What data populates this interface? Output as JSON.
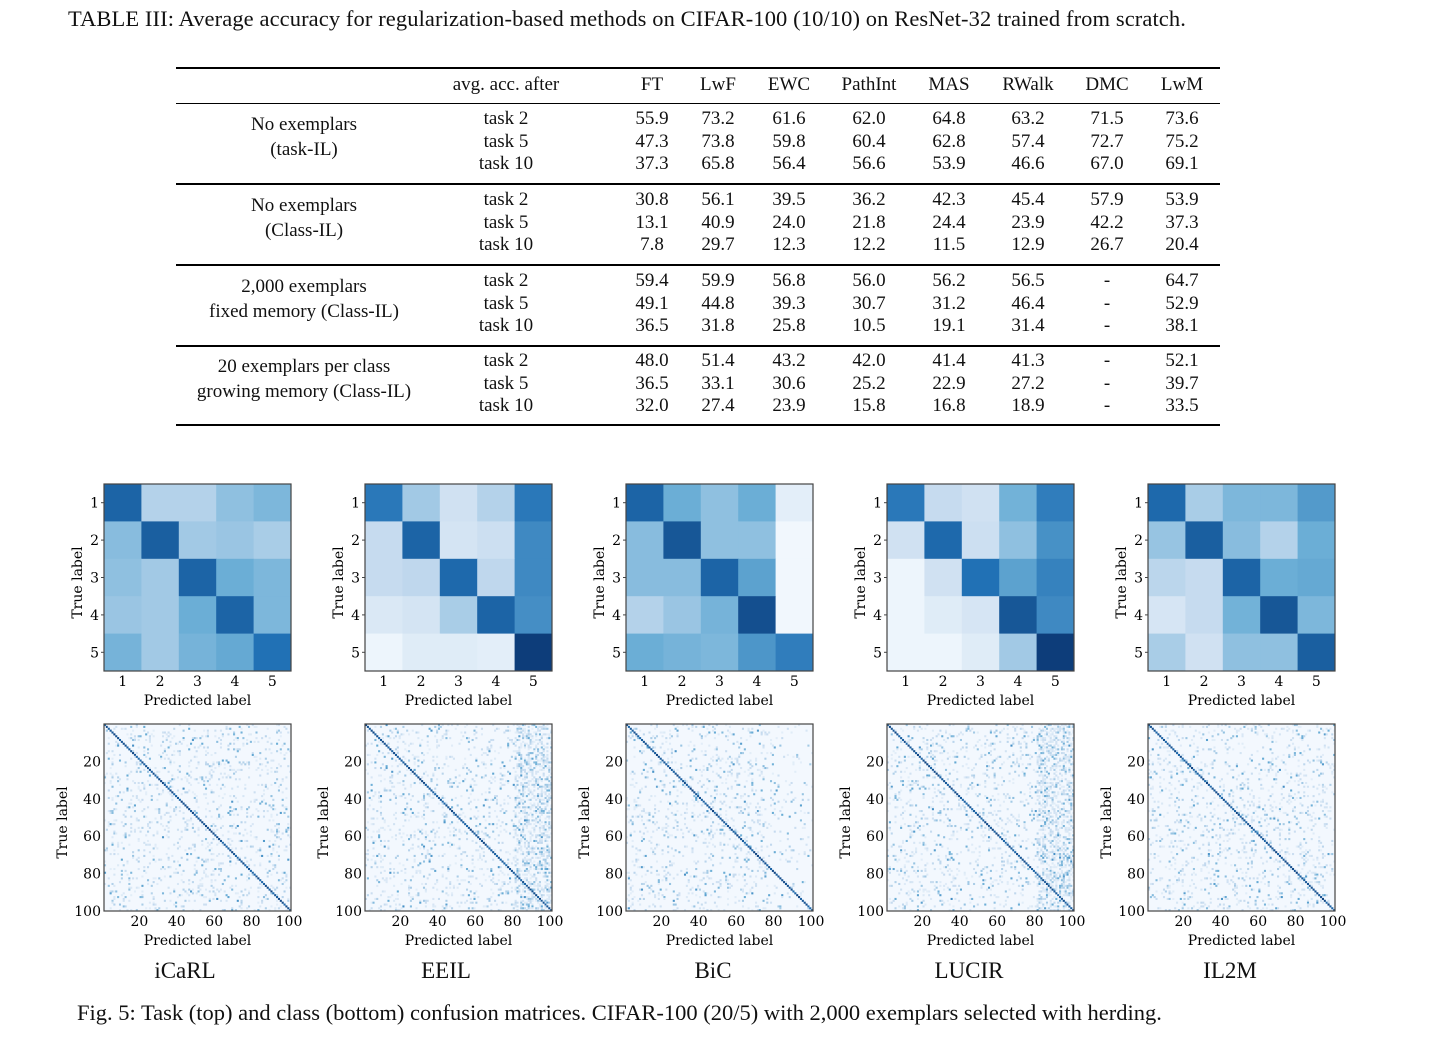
{
  "table": {
    "caption": "TABLE III: Average accuracy for regularization-based methods on CIFAR-100 (10/10) on ResNet-32 trained from scratch.",
    "header": [
      "avg. acc. after",
      "FT",
      "LwF",
      "EWC",
      "PathInt",
      "MAS",
      "RWalk",
      "DMC",
      "LwM"
    ],
    "groups": [
      {
        "label_lines": [
          "No exemplars",
          "(task-IL)"
        ],
        "rows": [
          {
            "task": "task 2",
            "values": [
              "55.9",
              "73.2",
              "61.6",
              "62.0",
              "64.8",
              "63.2",
              "71.5",
              "73.6"
            ]
          },
          {
            "task": "task 5",
            "values": [
              "47.3",
              "73.8",
              "59.8",
              "60.4",
              "62.8",
              "57.4",
              "72.7",
              "75.2"
            ]
          },
          {
            "task": "task 10",
            "values": [
              "37.3",
              "65.8",
              "56.4",
              "56.6",
              "53.9",
              "46.6",
              "67.0",
              "69.1"
            ]
          }
        ]
      },
      {
        "label_lines": [
          "No exemplars",
          "(Class-IL)"
        ],
        "rows": [
          {
            "task": "task 2",
            "values": [
              "30.8",
              "56.1",
              "39.5",
              "36.2",
              "42.3",
              "45.4",
              "57.9",
              "53.9"
            ]
          },
          {
            "task": "task 5",
            "values": [
              "13.1",
              "40.9",
              "24.0",
              "21.8",
              "24.4",
              "23.9",
              "42.2",
              "37.3"
            ]
          },
          {
            "task": "task 10",
            "values": [
              "7.8",
              "29.7",
              "12.3",
              "12.2",
              "11.5",
              "12.9",
              "26.7",
              "20.4"
            ]
          }
        ]
      },
      {
        "label_lines": [
          "2,000 exemplars",
          "fixed memory (Class-IL)"
        ],
        "rows": [
          {
            "task": "task 2",
            "values": [
              "59.4",
              "59.9",
              "56.8",
              "56.0",
              "56.2",
              "56.5",
              "-",
              "64.7"
            ]
          },
          {
            "task": "task 5",
            "values": [
              "49.1",
              "44.8",
              "39.3",
              "30.7",
              "31.2",
              "46.4",
              "-",
              "52.9"
            ]
          },
          {
            "task": "task 10",
            "values": [
              "36.5",
              "31.8",
              "25.8",
              "10.5",
              "19.1",
              "31.4",
              "-",
              "38.1"
            ]
          }
        ]
      },
      {
        "label_lines": [
          "20 exemplars per class",
          "growing memory (Class-IL)"
        ],
        "rows": [
          {
            "task": "task 2",
            "values": [
              "48.0",
              "51.4",
              "43.2",
              "42.0",
              "41.4",
              "41.3",
              "-",
              "52.1"
            ]
          },
          {
            "task": "task 5",
            "values": [
              "36.5",
              "33.1",
              "30.6",
              "25.2",
              "22.9",
              "27.2",
              "-",
              "39.7"
            ]
          },
          {
            "task": "task 10",
            "values": [
              "32.0",
              "27.4",
              "23.9",
              "15.8",
              "16.8",
              "18.9",
              "-",
              "33.5"
            ]
          }
        ]
      }
    ]
  },
  "figure": {
    "caption": "Fig. 5: Task (top) and class (bottom) confusion matrices. CIFAR-100 (20/5) with 2,000 exemplars selected with herding.",
    "xlabel": "Predicted label",
    "ylabel": "True label",
    "task_ticks": [
      "1",
      "2",
      "3",
      "4",
      "5"
    ],
    "class_ticks": [
      "20",
      "40",
      "60",
      "80",
      "100"
    ],
    "colormap": [
      "#f7fbff",
      "#c6dbef",
      "#6baed6",
      "#2171b5",
      "#08306b"
    ],
    "methods": [
      {
        "name": "iCaRL",
        "task_matrix": [
          [
            0.8,
            0.3,
            0.3,
            0.4,
            0.45
          ],
          [
            0.42,
            0.82,
            0.35,
            0.37,
            0.33
          ],
          [
            0.4,
            0.35,
            0.8,
            0.5,
            0.45
          ],
          [
            0.37,
            0.35,
            0.5,
            0.8,
            0.45
          ],
          [
            0.47,
            0.35,
            0.47,
            0.52,
            0.75
          ]
        ]
      },
      {
        "name": "EEIL",
        "task_matrix": [
          [
            0.72,
            0.35,
            0.2,
            0.3,
            0.72
          ],
          [
            0.25,
            0.8,
            0.18,
            0.22,
            0.65
          ],
          [
            0.25,
            0.27,
            0.78,
            0.27,
            0.65
          ],
          [
            0.15,
            0.18,
            0.33,
            0.8,
            0.63
          ],
          [
            0.05,
            0.12,
            0.12,
            0.1,
            0.95
          ]
        ]
      },
      {
        "name": "BiC",
        "task_matrix": [
          [
            0.8,
            0.5,
            0.4,
            0.5,
            0.1
          ],
          [
            0.42,
            0.85,
            0.4,
            0.4,
            0.03
          ],
          [
            0.42,
            0.42,
            0.8,
            0.55,
            0.03
          ],
          [
            0.3,
            0.37,
            0.47,
            0.88,
            0.03
          ],
          [
            0.5,
            0.47,
            0.45,
            0.6,
            0.7
          ]
        ]
      },
      {
        "name": "LUCIR",
        "task_matrix": [
          [
            0.72,
            0.25,
            0.2,
            0.48,
            0.7
          ],
          [
            0.2,
            0.78,
            0.22,
            0.4,
            0.62
          ],
          [
            0.05,
            0.2,
            0.75,
            0.55,
            0.68
          ],
          [
            0.05,
            0.12,
            0.17,
            0.85,
            0.65
          ],
          [
            0.05,
            0.05,
            0.12,
            0.35,
            0.95
          ]
        ]
      },
      {
        "name": "IL2M",
        "task_matrix": [
          [
            0.78,
            0.33,
            0.45,
            0.45,
            0.58
          ],
          [
            0.38,
            0.82,
            0.42,
            0.3,
            0.5
          ],
          [
            0.28,
            0.25,
            0.8,
            0.5,
            0.52
          ],
          [
            0.17,
            0.25,
            0.48,
            0.85,
            0.45
          ],
          [
            0.33,
            0.2,
            0.4,
            0.4,
            0.82
          ]
        ]
      }
    ]
  }
}
